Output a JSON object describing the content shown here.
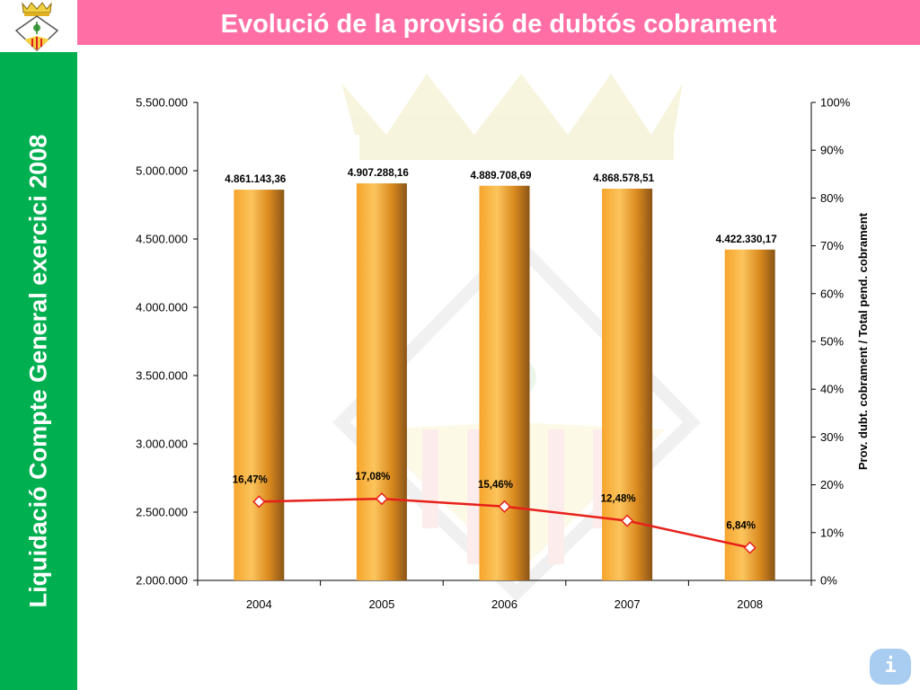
{
  "slide": {
    "title": "Evolució de la provisió de dubtós cobrament",
    "sidebar_label": "Liquidació Compte General exercici 2008",
    "logo_icon": "coat-of-arms-icon",
    "info_button_label": "i",
    "info_icon": "info-icon"
  },
  "colors": {
    "title_bar": "#ff6fa6",
    "sidebar": "#00b050",
    "bar_light": "#f9b940",
    "bar_dark": "#8a5518",
    "line": "#e8201a",
    "info_button": "#a8cdf0"
  },
  "chart_data": {
    "type": "bar",
    "categories": [
      "2004",
      "2005",
      "2006",
      "2007",
      "2008"
    ],
    "series": [
      {
        "values": [
          4861143.36,
          4907288.16,
          4889708.69,
          4868578.51,
          4422330.17
        ],
        "labels": [
          "4.861.143,36",
          "4.907.288,16",
          "4.889.708,69",
          "4.868.578,51",
          "4.422.330,17"
        ],
        "axis": "left"
      },
      {
        "type": "line",
        "values": [
          16.47,
          17.08,
          15.46,
          12.48,
          6.84
        ],
        "labels": [
          "16,47%",
          "17,08%",
          "15,46%",
          "12,48%",
          "6,84%"
        ],
        "axis": "right"
      }
    ],
    "ylim": [
      2000000,
      5500000
    ],
    "y_ticks": [
      2000000,
      2500000,
      3000000,
      3500000,
      4000000,
      4500000,
      5000000,
      5500000
    ],
    "y_tick_labels": [
      "2.000.000",
      "2.500.000",
      "3.000.000",
      "3.500.000",
      "4.000.000",
      "4.500.000",
      "5.000.000",
      "5.500.000"
    ],
    "y2lim": [
      0,
      100
    ],
    "y2_ticks": [
      0,
      10,
      20,
      30,
      40,
      50,
      60,
      70,
      80,
      90,
      100
    ],
    "y2_tick_labels": [
      "0%",
      "10%",
      "20%",
      "30%",
      "40%",
      "50%",
      "60%",
      "70%",
      "80%",
      "90%",
      "100%"
    ],
    "y2label": "Prov. dubt. cobrament / Total pend. cobrament",
    "xlabel": "",
    "ylabel": "",
    "grid": false,
    "legend": "none"
  }
}
